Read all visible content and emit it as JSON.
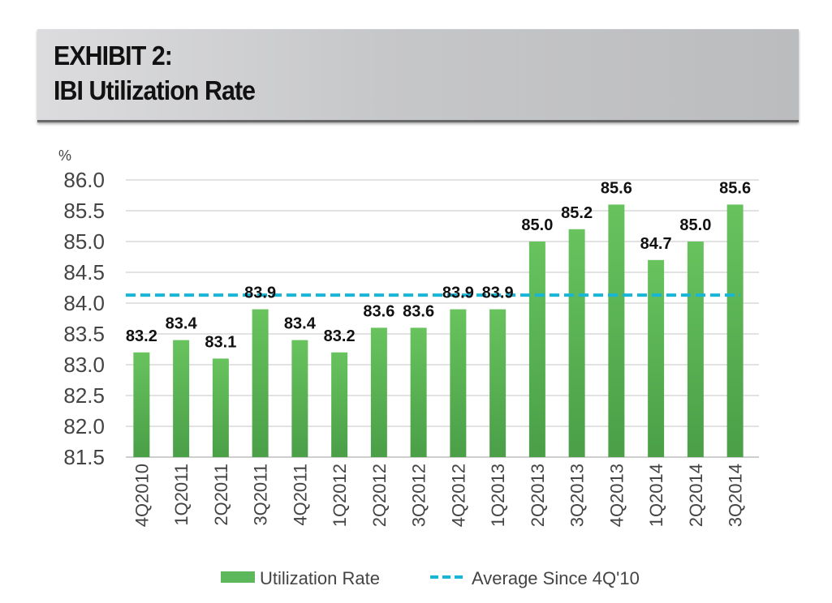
{
  "header": {
    "line1": "EXHIBIT 2:",
    "line2": "IBI Utilization Rate"
  },
  "chart_data": {
    "type": "bar",
    "title": "IBI Utilization Rate",
    "ylabel": "%",
    "xlabel": "",
    "ylim": [
      81.5,
      86.0
    ],
    "yticks": [
      "81.5",
      "82.0",
      "82.5",
      "83.0",
      "83.5",
      "84.0",
      "84.5",
      "85.0",
      "85.5",
      "86.0"
    ],
    "grid": true,
    "categories": [
      "4Q2010",
      "1Q2011",
      "2Q2011",
      "3Q2011",
      "4Q2011",
      "1Q2012",
      "2Q2012",
      "3Q2012",
      "4Q2012",
      "1Q2013",
      "2Q2013",
      "3Q2013",
      "4Q2013",
      "1Q2014",
      "2Q2014",
      "3Q2014"
    ],
    "series": [
      {
        "name": "Utilization Rate",
        "type": "bar",
        "color": "#5cb85a",
        "values": [
          83.2,
          83.4,
          83.1,
          83.9,
          83.4,
          83.2,
          83.6,
          83.6,
          83.9,
          83.9,
          85.0,
          85.2,
          85.6,
          84.7,
          85.0,
          85.6
        ],
        "labels": [
          "83.2",
          "83.4",
          "83.1",
          "83.9",
          "83.4",
          "83.2",
          "83.6",
          "83.6",
          "83.9",
          "83.9",
          "85.0",
          "85.2",
          "85.6",
          "84.7",
          "85.0",
          "85.6"
        ]
      },
      {
        "name": "Average Since 4Q'10",
        "type": "line",
        "style": "dashed",
        "color": "#17b5d6",
        "value": 84.13
      }
    ],
    "legend": {
      "position": "bottom",
      "items": [
        "Utilization Rate",
        "Average Since 4Q'10"
      ]
    }
  }
}
